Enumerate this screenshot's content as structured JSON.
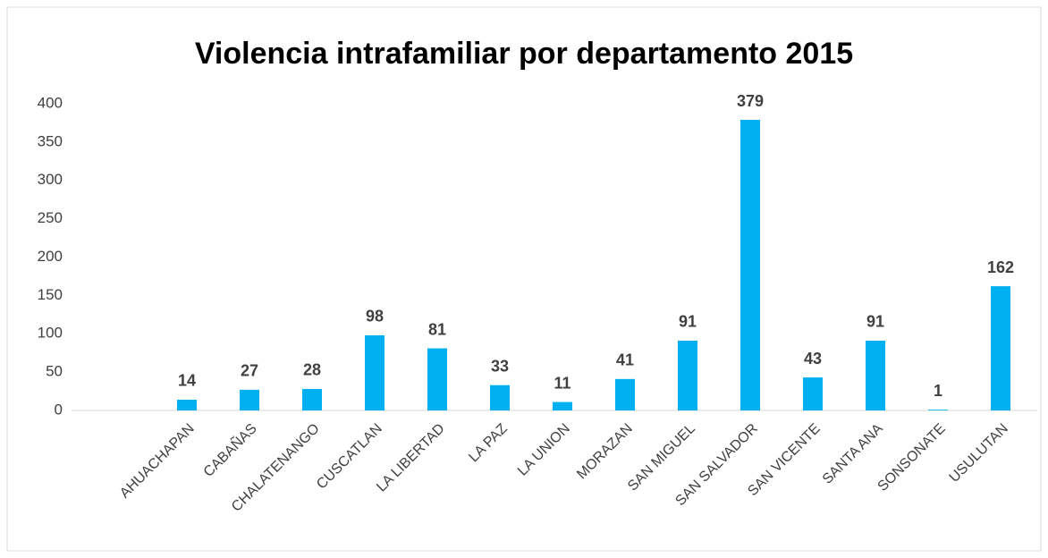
{
  "chart_data": {
    "type": "bar",
    "title": "Violencia intrafamiliar por departamento 2015",
    "categories": [
      null,
      "AHUACHAPAN",
      "CABAÑAS",
      "CHALATENANGO",
      "CUSCATLAN",
      "LA LIBERTAD",
      "LA PAZ",
      "LA UNION",
      "MORAZAN",
      "SAN MIGUEL",
      "SAN SALVADOR",
      "SAN VICENTE",
      "SANTA ANA",
      "SONSONATE",
      "USULUTAN"
    ],
    "values": [
      null,
      14,
      27,
      28,
      98,
      81,
      33,
      11,
      41,
      91,
      379,
      43,
      91,
      1,
      162
    ],
    "color": "#00b0f0",
    "ylim": [
      0,
      400
    ],
    "yticks": [
      0,
      50,
      100,
      150,
      200,
      250,
      300,
      350,
      400
    ],
    "grid": false
  }
}
